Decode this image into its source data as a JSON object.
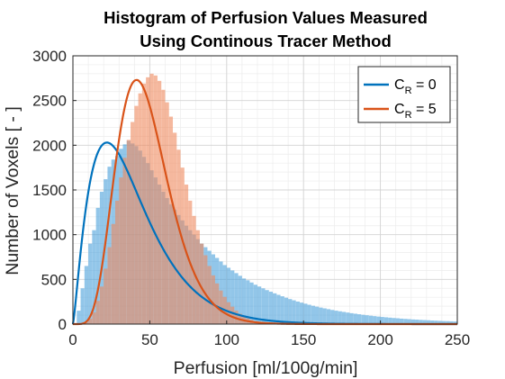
{
  "chart_data": {
    "type": "histogram",
    "title_line1": "Histogram of Perfusion Values Measured",
    "title_line2": "Using Continous Tracer Method",
    "xlabel": "Perfusion [ml/100g/min]",
    "ylabel": "Number of Voxels [ - ]",
    "xlim": [
      0,
      250
    ],
    "ylim": [
      0,
      3000
    ],
    "x_ticks": [
      "0",
      "50",
      "100",
      "150",
      "200",
      "250"
    ],
    "y_ticks": [
      "0",
      "500",
      "1000",
      "1500",
      "2000",
      "2500",
      "3000"
    ],
    "grid": true,
    "minor_grid": true,
    "legend_position": "top-right",
    "bin_width": 2.5,
    "series": [
      {
        "name": "C_R = 0",
        "legend_main": "C",
        "legend_sub": "R",
        "legend_tail": " = 0",
        "color": "#0072BD",
        "bar_color": "#4aa1dc",
        "fit_peak": [
          27,
          2030
        ],
        "bin_counts": [
          0,
          150,
          400,
          650,
          900,
          1050,
          1300,
          1480,
          1620,
          1760,
          1840,
          1880,
          1960,
          2010,
          2050,
          2020,
          1990,
          1940,
          1870,
          1800,
          1720,
          1640,
          1560,
          1480,
          1410,
          1340,
          1280,
          1220,
          1160,
          1100,
          1050,
          1000,
          950,
          900,
          860,
          820,
          780,
          740,
          700,
          660,
          630,
          600,
          570,
          540,
          510,
          490,
          465,
          440,
          420,
          400,
          380,
          362,
          344,
          327,
          311,
          295,
          280,
          266,
          252,
          240,
          228,
          216,
          205,
          195,
          185,
          176,
          167,
          158,
          150,
          143,
          136,
          129,
          122,
          116,
          110,
          104,
          99,
          94,
          89,
          84,
          80,
          76,
          72,
          68,
          65,
          61,
          58,
          55,
          52,
          50,
          47,
          45,
          43,
          40,
          38,
          36,
          34,
          33,
          31,
          29
        ]
      },
      {
        "name": "C_R = 5",
        "legend_main": "C",
        "legend_sub": "R",
        "legend_tail": " = 5",
        "color": "#D95319",
        "bar_color": "#f08a5e",
        "fit_peak": [
          49,
          2730
        ],
        "bin_counts": [
          0,
          0,
          5,
          20,
          60,
          130,
          260,
          420,
          620,
          860,
          1120,
          1380,
          1640,
          1860,
          2060,
          2260,
          2440,
          2580,
          2690,
          2760,
          2800,
          2780,
          2720,
          2620,
          2480,
          2320,
          2140,
          1950,
          1750,
          1560,
          1380,
          1210,
          1050,
          900,
          770,
          650,
          545,
          455,
          375,
          305,
          245,
          195,
          150,
          115,
          87,
          64,
          47,
          33,
          23,
          15,
          10,
          6,
          4,
          2,
          1,
          1,
          0,
          0,
          0,
          0,
          0,
          0,
          0,
          0,
          0,
          0,
          0,
          0,
          0,
          0,
          0,
          0,
          0,
          0,
          0,
          0,
          0,
          0,
          0,
          0,
          0,
          0,
          0,
          0,
          0,
          0,
          0,
          0,
          0,
          0,
          0,
          0,
          0,
          0,
          0,
          0,
          0,
          0,
          0,
          0
        ]
      }
    ]
  }
}
